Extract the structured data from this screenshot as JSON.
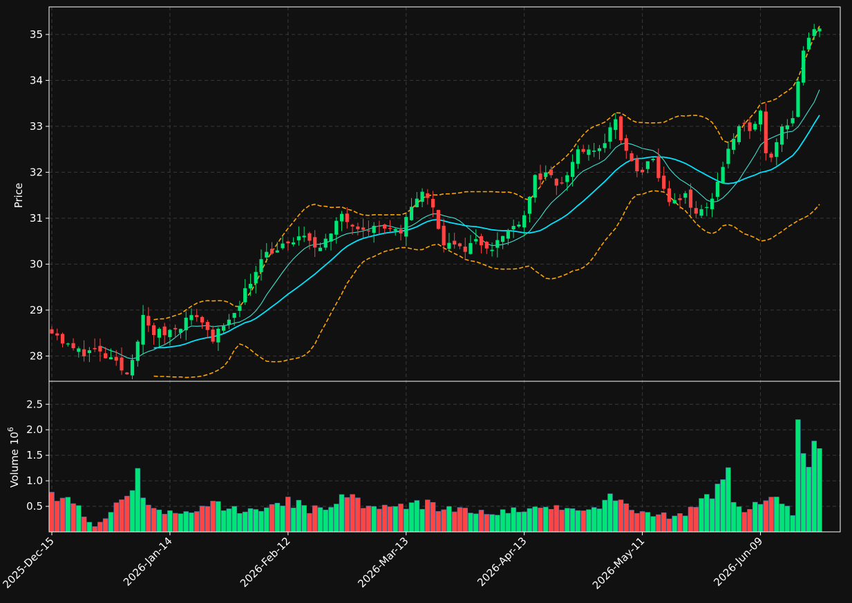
{
  "chart_data": {
    "type": "candlestick",
    "theme": {
      "background": "#111111",
      "up_color": "#00e676",
      "down_color": "#ff4444",
      "sma_fast_color": "#40e0d0",
      "sma_slow_color": "#00e5ff",
      "band_color": "#ffa500",
      "grid_color": "#3a3a3a",
      "frame_color": "#ffffff"
    },
    "x_tick_labels": [
      "2025-Dec-15",
      "2026-Jan-14",
      "2026-Feb-12",
      "2026-Mar-13",
      "2026-Apr-13",
      "2026-May-11",
      "2026-Jun-09"
    ],
    "x_tick_indices": [
      0,
      22,
      44,
      66,
      88,
      110,
      132
    ],
    "price_panel": {
      "ylabel": "Price",
      "ylim": [
        27.45,
        35.6
      ],
      "yticks": [
        28,
        29,
        30,
        31,
        32,
        33,
        34,
        35
      ],
      "grid": true
    },
    "volume_panel": {
      "ylabel": "Volume",
      "ylabel_exponent": "10",
      "ylabel_exponent_power": "6",
      "ylim": [
        0,
        2.95
      ],
      "yticks": [
        0.5,
        1.0,
        1.5,
        2.0,
        2.5
      ],
      "ytick_labels": [
        "0.5",
        "1.0",
        "1.5",
        "2.0",
        "2.5"
      ],
      "grid": true
    },
    "overlays": [
      {
        "kind": "sma_fast",
        "style": "solid"
      },
      {
        "kind": "sma_slow",
        "style": "solid"
      },
      {
        "kind": "bollinger_upper",
        "style": "dashed"
      },
      {
        "kind": "bollinger_lower",
        "style": "dashed"
      }
    ],
    "close_anchors": [
      [
        0,
        28.6
      ],
      [
        3,
        28.2
      ],
      [
        5,
        28.1
      ],
      [
        8,
        28.1
      ],
      [
        11,
        27.9
      ],
      [
        14,
        27.6
      ],
      [
        17,
        28.8
      ],
      [
        19,
        28.5
      ],
      [
        21,
        28.5
      ],
      [
        24,
        28.7
      ],
      [
        27,
        28.9
      ],
      [
        30,
        28.4
      ],
      [
        33,
        28.7
      ],
      [
        35,
        29.2
      ],
      [
        37,
        29.6
      ],
      [
        39,
        30.2
      ],
      [
        41,
        30.3
      ],
      [
        44,
        30.4
      ],
      [
        46,
        30.6
      ],
      [
        49,
        30.4
      ],
      [
        52,
        30.6
      ],
      [
        54,
        31.1
      ],
      [
        56,
        30.9
      ],
      [
        59,
        30.8
      ],
      [
        62,
        30.8
      ],
      [
        65,
        30.6
      ],
      [
        67,
        31.3
      ],
      [
        69,
        31.6
      ],
      [
        71,
        31.2
      ],
      [
        73,
        30.5
      ],
      [
        76,
        30.3
      ],
      [
        79,
        30.5
      ],
      [
        82,
        30.4
      ],
      [
        85,
        30.7
      ],
      [
        88,
        31.1
      ],
      [
        90,
        31.9
      ],
      [
        92,
        31.9
      ],
      [
        95,
        31.7
      ],
      [
        98,
        32.5
      ],
      [
        101,
        32.4
      ],
      [
        103,
        32.7
      ],
      [
        105,
        33.1
      ],
      [
        107,
        32.4
      ],
      [
        109,
        32.0
      ],
      [
        112,
        32.2
      ],
      [
        114,
        31.6
      ],
      [
        116,
        31.3
      ],
      [
        118,
        31.5
      ],
      [
        120,
        31.1
      ],
      [
        122,
        31.2
      ],
      [
        124,
        31.8
      ],
      [
        126,
        32.5
      ],
      [
        128,
        32.9
      ],
      [
        130,
        33.0
      ],
      [
        132,
        33.3
      ],
      [
        133,
        32.5
      ],
      [
        134,
        32.4
      ],
      [
        136,
        33.0
      ],
      [
        138,
        33.2
      ],
      [
        140,
        34.6
      ],
      [
        142,
        35.1
      ],
      [
        143,
        35.2
      ]
    ],
    "volume_anchors": [
      [
        0,
        0.68
      ],
      [
        4,
        0.6
      ],
      [
        6,
        0.35
      ],
      [
        8,
        0.12
      ],
      [
        10,
        0.22
      ],
      [
        12,
        0.5
      ],
      [
        14,
        0.62
      ],
      [
        15,
        0.82
      ],
      [
        16,
        1.22
      ],
      [
        17,
        0.6
      ],
      [
        19,
        0.45
      ],
      [
        21,
        0.35
      ],
      [
        25,
        0.4
      ],
      [
        28,
        0.45
      ],
      [
        30,
        0.6
      ],
      [
        32,
        0.45
      ],
      [
        36,
        0.45
      ],
      [
        40,
        0.5
      ],
      [
        44,
        0.6
      ],
      [
        48,
        0.45
      ],
      [
        52,
        0.5
      ],
      [
        55,
        0.8
      ],
      [
        58,
        0.45
      ],
      [
        62,
        0.5
      ],
      [
        66,
        0.5
      ],
      [
        70,
        0.55
      ],
      [
        74,
        0.45
      ],
      [
        78,
        0.38
      ],
      [
        82,
        0.35
      ],
      [
        86,
        0.4
      ],
      [
        90,
        0.42
      ],
      [
        94,
        0.5
      ],
      [
        98,
        0.45
      ],
      [
        102,
        0.55
      ],
      [
        105,
        0.7
      ],
      [
        108,
        0.4
      ],
      [
        112,
        0.35
      ],
      [
        116,
        0.3
      ],
      [
        120,
        0.45
      ],
      [
        124,
        0.85
      ],
      [
        126,
        1.1
      ],
      [
        127,
        0.55
      ],
      [
        129,
        0.4
      ],
      [
        131,
        0.6
      ],
      [
        135,
        0.6
      ],
      [
        138,
        0.4
      ],
      [
        139,
        2.7
      ],
      [
        140,
        1.55
      ],
      [
        141,
        1.35
      ],
      [
        142,
        1.65
      ],
      [
        143,
        1.5
      ]
    ]
  }
}
